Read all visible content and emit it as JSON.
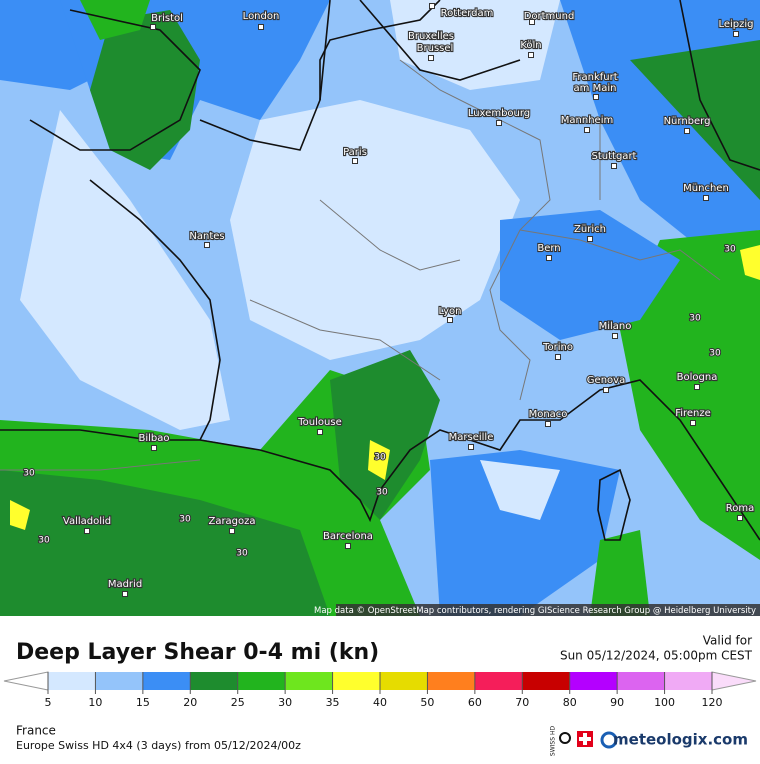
{
  "title": "Deep Layer Shear 0-4 mi (kn)",
  "valid_for": "Valid for",
  "valid_time": "Sun 05/12/2024, 05:00pm CEST",
  "region": "France",
  "model_run": "Europe Swiss HD 4x4 (3 days) from 05/12/2024/00z",
  "badge": "SWISS HD",
  "logo": "meteologix.com",
  "map_attribution": "Map data © OpenStreetMap contributors, rendering GIScience Research Group @ Heidelberg University",
  "cities": [
    "Bristol",
    "London",
    "Rotterdam",
    "Dortmund",
    "Leipzig",
    "Bruxelles",
    "Brussel",
    "Köln",
    "Frankfurt",
    "am Main",
    "Luxembourg",
    "Mannheim",
    "Nürnberg",
    "Paris",
    "Stuttgart",
    "München",
    "Nantes",
    "Zürich",
    "Bern",
    "Lyon",
    "Milano",
    "Torino",
    "Bologna",
    "Genova",
    "Toulouse",
    "Monaco",
    "Firenze",
    "Bilbao",
    "Marseille",
    "Valladolid",
    "Zaragoza",
    "Roma",
    "Barcelona",
    "Madrid"
  ],
  "contour_labels": [
    "30",
    "30",
    "30",
    "30",
    "30",
    "30",
    "30",
    "30",
    "30"
  ],
  "legend": {
    "ticks": [
      5,
      10,
      15,
      20,
      25,
      30,
      35,
      40,
      50,
      60,
      70,
      80,
      90,
      100,
      120
    ],
    "colors": [
      "#d4e8ff",
      "#94c4fa",
      "#3b8ef5",
      "#1e8c2e",
      "#22b41e",
      "#6ee61e",
      "#ffff2d",
      "#e6dc00",
      "#ff7f1e",
      "#f51e5a",
      "#c80000",
      "#b400ff",
      "#dc64f0",
      "#f0aaf5"
    ],
    "under_color": "#ffffff",
    "over_color": "#fadcfa"
  }
}
